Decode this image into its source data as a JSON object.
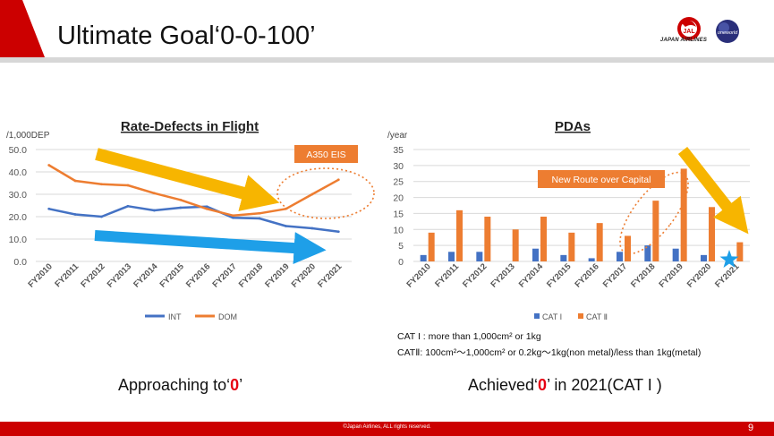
{
  "header": {
    "title": "Ultimate Goal‘0-0-100’",
    "airline_name": "JAPAN AIRLINES",
    "logo_text": "JAL",
    "alliance_text": "oneworld",
    "brand_color": "#cc0000"
  },
  "footer": {
    "copyright": "©Japan Airlines, ALL rights reserved.",
    "page_number": "9"
  },
  "captions": {
    "left_prefix": "Approaching to‘",
    "left_zero": "0",
    "left_suffix": "’",
    "right_prefix": "Achieved‘",
    "right_zero": "0",
    "right_suffix": "’ in 2021(CAT I )"
  },
  "notes": {
    "cat1": "CAT I : more than 1,000cm² or 1kg",
    "cat2": "CATⅡ: 100cm²〜1,000cm² or 0.2kg〜1kg(non metal)/less than 1kg(metal)"
  },
  "chart_data": [
    {
      "type": "line",
      "title": "Rate-Defects in Flight",
      "unit": "/1,000DEP",
      "categories": [
        "FY2010",
        "FY2011",
        "FY2012",
        "FY2013",
        "FY2014",
        "FY2015",
        "FY2016",
        "FY2017",
        "FY2018",
        "FY2019",
        "FY2020",
        "FY2021"
      ],
      "series": [
        {
          "name": "INT",
          "color": "#4472c4",
          "values": [
            23.5,
            21.0,
            20.0,
            24.7,
            22.8,
            24.0,
            24.5,
            19.5,
            19.2,
            15.8,
            14.8,
            13.3
          ]
        },
        {
          "name": "DOM",
          "color": "#ed7d31",
          "values": [
            43.0,
            36.0,
            34.5,
            34.0,
            30.5,
            27.5,
            23.5,
            20.5,
            21.5,
            23.5,
            30.0,
            36.5
          ]
        }
      ],
      "yticks": [
        "0.0",
        "10.0",
        "20.0",
        "30.0",
        "40.0",
        "50.0"
      ],
      "ylim": [
        0,
        50
      ],
      "legend": "bottom",
      "annotation": "A350 EIS"
    },
    {
      "type": "bar",
      "title": "PDAs",
      "unit": "/year",
      "categories": [
        "FY2010",
        "FY2011",
        "FY2012",
        "FY2013",
        "FY2014",
        "FY2015",
        "FY2016",
        "FY2017",
        "FY2018",
        "FY2019",
        "FY2020",
        "FY2021"
      ],
      "series": [
        {
          "name": "CAT I",
          "color": "#4472c4",
          "values": [
            2,
            3,
            3,
            0,
            4,
            2,
            1,
            3,
            5,
            4,
            2,
            0
          ]
        },
        {
          "name": "CAT Ⅱ",
          "color": "#ed7d31",
          "values": [
            9,
            16,
            14,
            10,
            14,
            9,
            12,
            8,
            19,
            29,
            17,
            6
          ]
        }
      ],
      "yticks": [
        "0",
        "5",
        "10",
        "15",
        "20",
        "25",
        "30",
        "35"
      ],
      "ylim": [
        0,
        35
      ],
      "legend": "bottom",
      "annotation": "New Route over Capital"
    }
  ]
}
